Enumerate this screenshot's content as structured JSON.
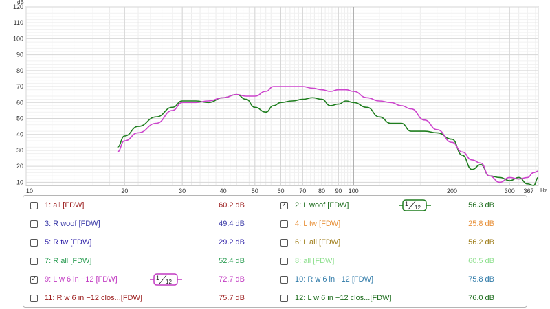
{
  "chart_data": {
    "type": "line",
    "title": "",
    "xlabel": "",
    "ylabel": "",
    "y_unit": "dB",
    "x_unit": "Hz",
    "x_scale": "log",
    "xlim": [
      10,
      367
    ],
    "ylim": [
      8,
      120
    ],
    "grid": true,
    "x_ticks": [
      10,
      20,
      30,
      40,
      50,
      60,
      70,
      80,
      90,
      100,
      200,
      300,
      367
    ],
    "y_ticks": [
      10,
      20,
      30,
      40,
      50,
      60,
      70,
      80,
      90,
      100,
      110,
      120
    ],
    "cursor_x": 100,
    "series": [
      {
        "name": "2: L woof [FDW]",
        "color": "#1e7d1e",
        "x": [
          19,
          20,
          22,
          25,
          28,
          30,
          33,
          36,
          40,
          44,
          47,
          50,
          54,
          57,
          60,
          65,
          70,
          75,
          80,
          85,
          90,
          95,
          100,
          110,
          120,
          130,
          140,
          150,
          165,
          180,
          200,
          215,
          230,
          245,
          260,
          280,
          300,
          320,
          340,
          355,
          367
        ],
        "y": [
          32,
          39,
          45,
          51,
          57,
          61,
          61,
          60,
          63,
          65,
          62,
          57,
          54,
          58,
          60,
          61,
          62,
          63,
          62,
          58,
          59,
          61,
          60,
          57,
          51,
          47,
          47,
          42,
          42,
          41,
          37,
          27,
          18,
          21,
          14,
          13,
          11,
          13,
          9,
          8,
          13
        ]
      },
      {
        "name": "9: L w 6 in -12 [FDW]",
        "color": "#cc44cc",
        "x": [
          19,
          20,
          22,
          25,
          28,
          30,
          33,
          36,
          40,
          44,
          47,
          50,
          54,
          57,
          60,
          65,
          70,
          75,
          80,
          85,
          90,
          95,
          100,
          110,
          120,
          130,
          140,
          150,
          165,
          180,
          200,
          215,
          230,
          245,
          260,
          280,
          300,
          320,
          340,
          355,
          367
        ],
        "y": [
          29,
          36,
          41,
          47,
          55,
          60,
          60,
          61,
          63,
          65,
          64,
          64,
          67,
          70,
          70,
          70,
          70,
          69,
          68,
          67,
          68,
          68,
          67,
          63,
          61,
          60,
          58,
          56,
          49,
          43,
          35,
          29,
          24,
          22,
          14,
          10,
          13,
          12,
          13,
          16,
          17
        ]
      }
    ]
  },
  "legend": {
    "items": [
      {
        "label": "1: all [FDW]",
        "value": "60.2 dB",
        "color": "#9b1c1c",
        "checked": false
      },
      {
        "label": "2: L woof [FDW]",
        "value": "56.3 dB",
        "color": "#1e6d1e",
        "checked": true,
        "smoothing": "1/12",
        "smooth_color": "#1e7d1e"
      },
      {
        "label": "3: R woof [FDW]",
        "value": "49.4 dB",
        "color": "#3a3aa8",
        "checked": false
      },
      {
        "label": "4: L tw [FDW]",
        "value": "25.8 dB",
        "color": "#e8913a",
        "checked": false
      },
      {
        "label": "5: R tw [FDW]",
        "value": "29.2 dB",
        "color": "#2d1fa8",
        "checked": false
      },
      {
        "label": "6: L all [FDW]",
        "value": "56.2 dB",
        "color": "#9c7a14",
        "checked": false
      },
      {
        "label": "7: R all [FDW]",
        "value": "52.4 dB",
        "color": "#2e9e55",
        "checked": false
      },
      {
        "label": "8: all [FDW]",
        "value": "60.5 dB",
        "color": "#8fe08f",
        "checked": false
      },
      {
        "label": "9: L w 6 in −12 [FDW]",
        "value": "72.7 dB",
        "color": "#c23ac2",
        "checked": true,
        "smoothing": "1/12",
        "smooth_color": "#c23ac2"
      },
      {
        "label": "10: R w 6 in −12 [FDW]",
        "value": "75.8 dB",
        "color": "#2f7aa8",
        "checked": false
      },
      {
        "label": "11: R w 6 in −12 clos...[FDW]",
        "value": "75.7 dB",
        "color": "#9b1c1c",
        "checked": false
      },
      {
        "label": "12: L w 6 in −12 clos...[FDW]",
        "value": "76.0 dB",
        "color": "#1e6d1e",
        "checked": false
      }
    ]
  }
}
